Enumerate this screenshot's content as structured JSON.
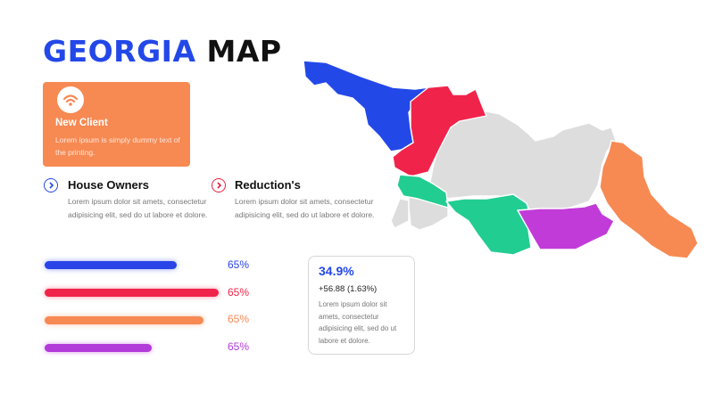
{
  "title": {
    "part1": "GEORGIA",
    "part2": "MAP"
  },
  "client_card": {
    "icon": "wifi-icon",
    "title": "New Client",
    "text": "Lorem ipsum is simply dummy text of the printing."
  },
  "features": [
    {
      "icon": "chevron-right-icon",
      "color": "#2348e8",
      "title": "House Owners",
      "text": "Lorem ipsum dolor sit amets, consectetur adipisicing elit, sed do ut labore et dolore."
    },
    {
      "icon": "chevron-right-icon",
      "color": "#e8213f",
      "title": "Reduction's",
      "text": "Lorem ipsum dolor sit amets, consectetur adipisicing elit, sed do ut labore et dolore."
    }
  ],
  "bars": [
    {
      "color": "#2a44e8",
      "label": "65%",
      "fill": 0.65
    },
    {
      "color": "#f0244a",
      "label": "65%",
      "fill": 0.65
    },
    {
      "color": "#f78953",
      "label": "65%",
      "fill": 0.65
    },
    {
      "color": "#b23ad8",
      "label": "65%",
      "fill": 0.65
    }
  ],
  "stat": {
    "value": "34.9%",
    "change": "+56.88 (1.63%)",
    "text": "Lorem ipsum dolor sit amets, consectetur adipisicing elit, sed do ut labore et dolore."
  },
  "map": {
    "regions": [
      {
        "name": "abkhazia",
        "color": "#2348e8"
      },
      {
        "name": "samegrelo",
        "color": "#f0244a"
      },
      {
        "name": "guria",
        "color": "#22cd92"
      },
      {
        "name": "samtskhe",
        "color": "#22cd92"
      },
      {
        "name": "kvemo-kartli",
        "color": "#c13bd8"
      },
      {
        "name": "kakheti",
        "color": "#f78953"
      },
      {
        "name": "other",
        "color": "#dddddd"
      }
    ]
  }
}
